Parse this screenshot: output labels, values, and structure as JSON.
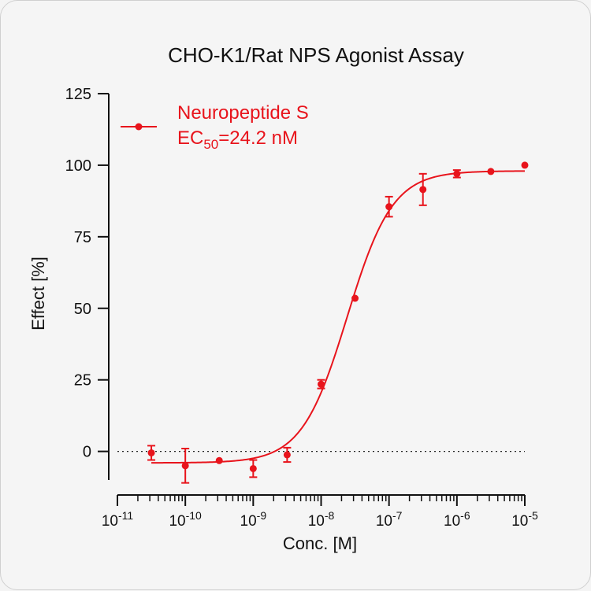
{
  "chart_data": {
    "type": "scatter",
    "title": "CHO-K1/Rat NPS Agonist Assay",
    "xlabel": "Conc. [M]",
    "ylabel": "Effect  [%]",
    "x_scale": "log",
    "xlim": [
      1e-11,
      1e-05
    ],
    "ylim": [
      -10,
      125
    ],
    "x_ticks": [
      {
        "base": "10",
        "exp": "-11",
        "value": 1e-11
      },
      {
        "base": "10",
        "exp": "-10",
        "value": 1e-10
      },
      {
        "base": "10",
        "exp": "-9",
        "value": 1e-09
      },
      {
        "base": "10",
        "exp": "-8",
        "value": 1e-08
      },
      {
        "base": "10",
        "exp": "-7",
        "value": 1e-07
      },
      {
        "base": "10",
        "exp": "-6",
        "value": 1e-06
      },
      {
        "base": "10",
        "exp": "-5",
        "value": 1e-05
      }
    ],
    "y_ticks": [
      0,
      25,
      50,
      75,
      100,
      125
    ],
    "reference_line_y": 0,
    "legend_position": "top-left",
    "series": [
      {
        "name": "Neuropeptide S",
        "color": "#e8141c",
        "points": [
          {
            "x": 3.16e-11,
            "y": -0.5,
            "err": 2.5
          },
          {
            "x": 1e-10,
            "y": -5.0,
            "err": 6.0
          },
          {
            "x": 3.16e-10,
            "y": -3.2,
            "err": 0
          },
          {
            "x": 1e-09,
            "y": -6.0,
            "err": 3.0
          },
          {
            "x": 3.16e-09,
            "y": -1.2,
            "err": 2.5
          },
          {
            "x": 1e-08,
            "y": 23.5,
            "err": 1.5
          },
          {
            "x": 3.16e-08,
            "y": 53.5,
            "err": 0
          },
          {
            "x": 1e-07,
            "y": 85.5,
            "err": 3.5
          },
          {
            "x": 3.16e-07,
            "y": 91.5,
            "err": 5.5
          },
          {
            "x": 1e-06,
            "y": 97.0,
            "err": 1.3
          },
          {
            "x": 3.16e-06,
            "y": 97.8,
            "err": 0
          },
          {
            "x": 1e-05,
            "y": 100.0,
            "err": 0
          }
        ],
        "fit": {
          "bottom": -4.0,
          "top": 98.0,
          "ec50": 2.42e-08,
          "hill": 1.3
        }
      }
    ],
    "annotation": {
      "name": "Neuropeptide S",
      "ec_prefix": "EC",
      "ec_sub": "50",
      "ec_value": "=24.2 nM"
    }
  }
}
